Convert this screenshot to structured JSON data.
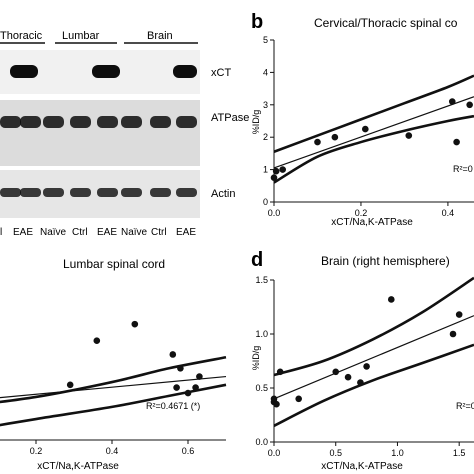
{
  "blot": {
    "group_labels": [
      "Thoracic",
      "Lumbar",
      "Brain"
    ],
    "band_labels": [
      "xCT",
      "ATPase",
      "Actin"
    ],
    "lane_labels": [
      "l",
      "EAE",
      "Naïve",
      "Ctrl",
      "EAE",
      "Naïve",
      "Ctrl",
      "EAE"
    ]
  },
  "colors": {
    "band": "#0d0d0d",
    "blot_bg": "#f1f1f1",
    "ink": "#111111"
  },
  "chart_data": [
    {
      "panel_letter": "b",
      "type": "scatter",
      "title": "Cervical/Thoracic spinal co",
      "xlabel": "xCT/Na,K-ATPase",
      "ylabel": "%ID/g",
      "xlim": [
        0,
        0.46
      ],
      "ylim": [
        0,
        5
      ],
      "xticks": [
        "0.0",
        "0.2",
        "0.4"
      ],
      "yticks": [
        "0",
        "1",
        "2",
        "3",
        "4",
        "5"
      ],
      "x": [
        0.0,
        0.005,
        0.02,
        0.1,
        0.14,
        0.21,
        0.31,
        0.41,
        0.42,
        0.45
      ],
      "y": [
        0.75,
        0.95,
        1.0,
        1.85,
        2.0,
        2.25,
        2.05,
        3.1,
        1.85,
        3.0
      ],
      "fit": [
        0.0,
        1.05,
        0.46,
        3.25
      ],
      "ci_upper": [
        [
          0,
          1.55
        ],
        [
          0.1,
          2.05
        ],
        [
          0.2,
          2.55
        ],
        [
          0.3,
          3.05
        ],
        [
          0.4,
          3.55
        ],
        [
          0.46,
          3.9
        ]
      ],
      "ci_lower": [
        [
          0,
          0.6
        ],
        [
          0.1,
          1.4
        ],
        [
          0.2,
          1.85
        ],
        [
          0.3,
          2.2
        ],
        [
          0.4,
          2.5
        ],
        [
          0.46,
          2.65
        ]
      ],
      "annotation": "R²=0"
    },
    {
      "panel_letter": "",
      "type": "scatter",
      "title": "Lumbar spinal cord",
      "xlabel": "xCT/Na,K-ATPase",
      "ylabel": "",
      "xlim": [
        0,
        0.7
      ],
      "ylim": [
        0,
        2.9
      ],
      "xticks": [
        "0.2",
        "0.4",
        "0.6"
      ],
      "yticks": [],
      "x": [
        0.29,
        0.36,
        0.46,
        0.56,
        0.57,
        0.58,
        0.6,
        0.62,
        0.63
      ],
      "y": [
        1.0,
        1.8,
        2.1,
        1.55,
        0.95,
        1.3,
        0.85,
        0.95,
        1.15
      ],
      "fit": [
        0.0,
        0.7,
        0.7,
        1.15
      ],
      "ci_upper": [
        [
          0,
          0.6
        ],
        [
          0.2,
          0.78
        ],
        [
          0.4,
          1.05
        ],
        [
          0.55,
          1.3
        ],
        [
          0.7,
          1.5
        ]
      ],
      "ci_lower": [
        [
          0,
          0.15
        ],
        [
          0.2,
          0.38
        ],
        [
          0.4,
          0.6
        ],
        [
          0.55,
          0.8
        ],
        [
          0.7,
          1.0
        ]
      ],
      "annotation": "R²=0.4671   (*)"
    },
    {
      "panel_letter": "d",
      "type": "scatter",
      "title": "Brain (right hemisphere)",
      "xlabel": "xCT/Na,K-ATPase",
      "ylabel": "%ID/g",
      "xlim": [
        0,
        1.62
      ],
      "ylim": [
        0,
        1.5
      ],
      "xticks": [
        "0.0",
        "0.5",
        "1.0",
        "1.5"
      ],
      "yticks": [
        "0.0",
        "0.5",
        "1.0",
        "1.5"
      ],
      "x": [
        0.0,
        0.0,
        0.02,
        0.05,
        0.2,
        0.5,
        0.6,
        0.7,
        0.75,
        0.95,
        1.45,
        1.5
      ],
      "y": [
        0.37,
        0.4,
        0.35,
        0.65,
        0.4,
        0.65,
        0.6,
        0.55,
        0.7,
        1.32,
        1.0,
        1.18
      ],
      "fit": [
        0.0,
        0.4,
        1.62,
        1.17
      ],
      "ci_upper": [
        [
          0,
          0.62
        ],
        [
          0.4,
          0.75
        ],
        [
          0.8,
          0.95
        ],
        [
          1.2,
          1.2
        ],
        [
          1.62,
          1.52
        ]
      ],
      "ci_lower": [
        [
          0,
          0.15
        ],
        [
          0.4,
          0.38
        ],
        [
          0.8,
          0.57
        ],
        [
          1.2,
          0.73
        ],
        [
          1.62,
          0.9
        ]
      ],
      "annotation": "R²=0"
    }
  ]
}
